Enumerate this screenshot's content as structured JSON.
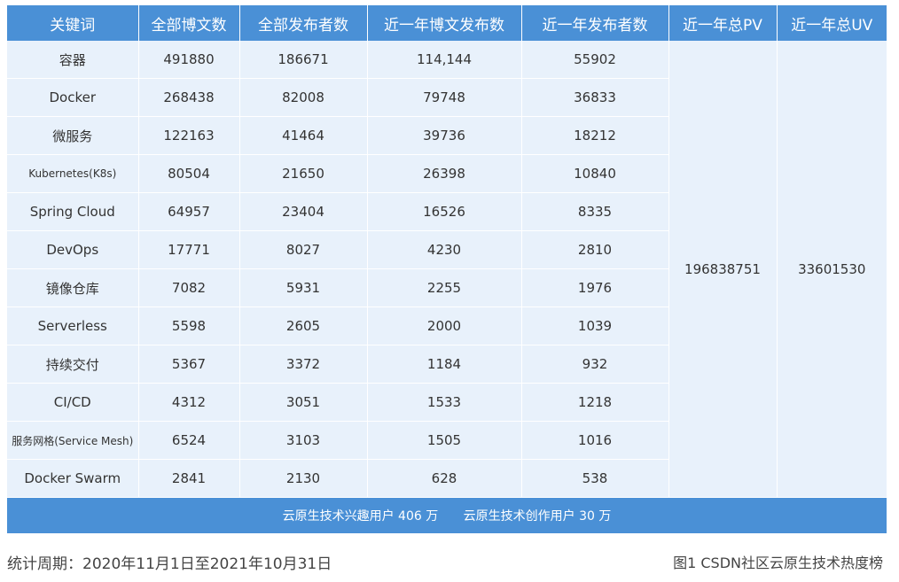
{
  "table": {
    "headers": [
      "关键词",
      "全部博文数",
      "全部发布者数",
      "近一年博文发布数",
      "近一年发布者数",
      "近一年总PV",
      "近一年总UV"
    ],
    "rows": [
      {
        "keyword": "容器",
        "total_posts": "491880",
        "total_authors": "186671",
        "year_posts": "114,144",
        "year_authors": "55902"
      },
      {
        "keyword": "Docker",
        "total_posts": "268438",
        "total_authors": "82008",
        "year_posts": "79748",
        "year_authors": "36833"
      },
      {
        "keyword": "微服务",
        "total_posts": "122163",
        "total_authors": "41464",
        "year_posts": "39736",
        "year_authors": "18212"
      },
      {
        "keyword": "Kubernetes(K8s)",
        "total_posts": "80504",
        "total_authors": "21650",
        "year_posts": "26398",
        "year_authors": "10840"
      },
      {
        "keyword": "Spring Cloud",
        "total_posts": "64957",
        "total_authors": "23404",
        "year_posts": "16526",
        "year_authors": "8335"
      },
      {
        "keyword": "DevOps",
        "total_posts": "17771",
        "total_authors": "8027",
        "year_posts": "4230",
        "year_authors": "2810"
      },
      {
        "keyword": "镜像仓库",
        "total_posts": "7082",
        "total_authors": "5931",
        "year_posts": "2255",
        "year_authors": "1976"
      },
      {
        "keyword": "Serverless",
        "total_posts": "5598",
        "total_authors": "2605",
        "year_posts": "2000",
        "year_authors": "1039"
      },
      {
        "keyword": "持续交付",
        "total_posts": "5367",
        "total_authors": "3372",
        "year_posts": "1184",
        "year_authors": "932"
      },
      {
        "keyword": "CI/CD",
        "total_posts": "4312",
        "total_authors": "3051",
        "year_posts": "1533",
        "year_authors": "1218"
      },
      {
        "keyword": "服务网格(Service Mesh)",
        "total_posts": "6524",
        "total_authors": "3103",
        "year_posts": "1505",
        "year_authors": "1016"
      },
      {
        "keyword": "Docker Swarm",
        "total_posts": "2841",
        "total_authors": "2130",
        "year_posts": "628",
        "year_authors": "538"
      }
    ],
    "year_pv": "196838751",
    "year_uv": "33601530",
    "footer": {
      "interest_users": "云原生技术兴趣用户 406 万",
      "creator_users": "云原生技术创作用户 30 万"
    }
  },
  "captions": {
    "period": "统计周期：2020年11月1日至2021年10月31日",
    "figure": "图1 CSDN社区云原生技术热度榜"
  }
}
